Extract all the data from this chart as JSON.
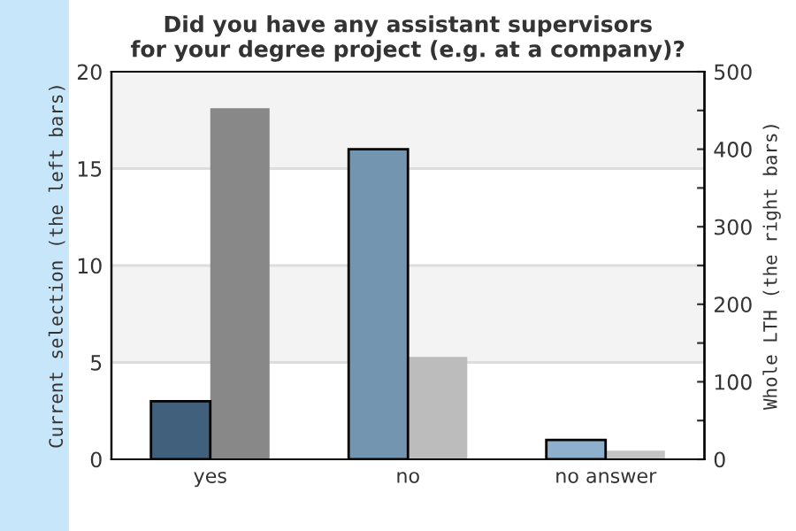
{
  "chart_data": {
    "type": "bar",
    "title": "Did you have any assistant supervisors\nfor your degree project (e.g. at a company)?",
    "categories": [
      "yes",
      "no",
      "no answer"
    ],
    "ylabel": "Current selection (the left bars)",
    "y2label": "Whole LTH (the right bars)",
    "series": [
      {
        "colors": [
          "#41607c",
          "#7495b0",
          "#8eb0cc"
        ],
        "values": [
          3,
          16,
          1
        ]
      },
      {
        "colors": [
          "#888888",
          "#bcbcbc",
          "#c4c4c4"
        ],
        "values": [
          453,
          132,
          11
        ],
        "axis": "y2"
      }
    ],
    "ylim": [
      0,
      20
    ],
    "yticks": [
      0,
      5,
      10,
      15,
      20
    ],
    "y2lim": [
      0,
      500
    ],
    "y2ticks": [
      0,
      {
        "value": 50,
        "label": null
      },
      100,
      {
        "value": 150,
        "label": null
      },
      200,
      {
        "value": 250,
        "label": null
      },
      300,
      {
        "value": 350,
        "label": null
      },
      400,
      {
        "value": 450,
        "label": null
      },
      500
    ],
    "grid": "y",
    "legend": false
  }
}
